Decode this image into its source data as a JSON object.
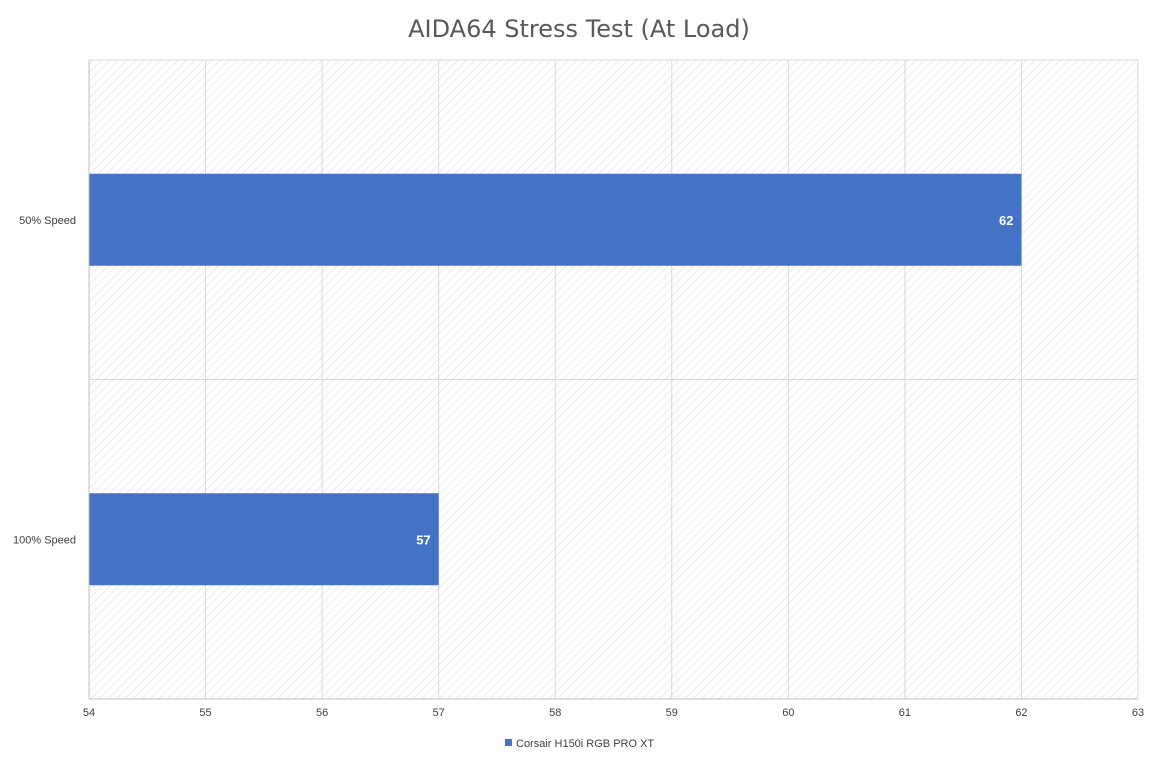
{
  "chart_data": {
    "type": "bar",
    "orientation": "horizontal",
    "title": "AIDA64 Stress Test (At Load)",
    "categories": [
      "50% Speed",
      "100% Speed"
    ],
    "series": [
      {
        "name": "Corsair H150i RGB PRO XT",
        "values": [
          62,
          57
        ],
        "color": "#4472C4"
      }
    ],
    "xlim": [
      54,
      63
    ],
    "x_ticks": [
      "54",
      "55",
      "56",
      "57",
      "58",
      "59",
      "60",
      "61",
      "62",
      "63"
    ],
    "data_labels": [
      "62",
      "57"
    ],
    "grid": true,
    "legend_position": "bottom"
  }
}
